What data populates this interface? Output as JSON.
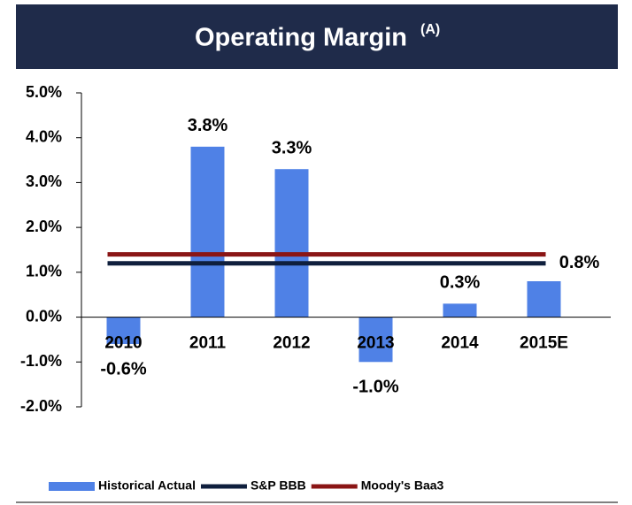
{
  "chart_data": {
    "type": "bar",
    "title": "Operating Margin",
    "title_note": "(A)",
    "categories": [
      "2010",
      "2011",
      "2012",
      "2013",
      "2014",
      "2015E"
    ],
    "series": [
      {
        "name": "Historical Actual",
        "type": "bar",
        "color": "#4f81e6",
        "values": [
          -0.6,
          3.8,
          3.3,
          -1.0,
          0.3,
          0.8
        ],
        "value_labels": [
          "-0.6%",
          "3.8%",
          "3.3%",
          "-1.0%",
          "0.3%",
          "0.8%"
        ]
      },
      {
        "name": "S&P BBB",
        "type": "line",
        "color": "#0f1f3d",
        "value": 1.2
      },
      {
        "name": "Moody's Baa3",
        "type": "line",
        "color": "#8a1515",
        "value": 1.4
      }
    ],
    "ylim": [
      -2,
      5
    ],
    "yticks": [
      {
        "value": -2,
        "label": "-2.0%"
      },
      {
        "value": -1,
        "label": "-1.0%"
      },
      {
        "value": 0,
        "label": "0.0%"
      },
      {
        "value": 1,
        "label": "1.0%"
      },
      {
        "value": 2,
        "label": "2.0%"
      },
      {
        "value": 3,
        "label": "3.0%"
      },
      {
        "value": 4,
        "label": "4.0%"
      },
      {
        "value": 5,
        "label": "5.0%"
      }
    ],
    "legend": "bottom"
  }
}
